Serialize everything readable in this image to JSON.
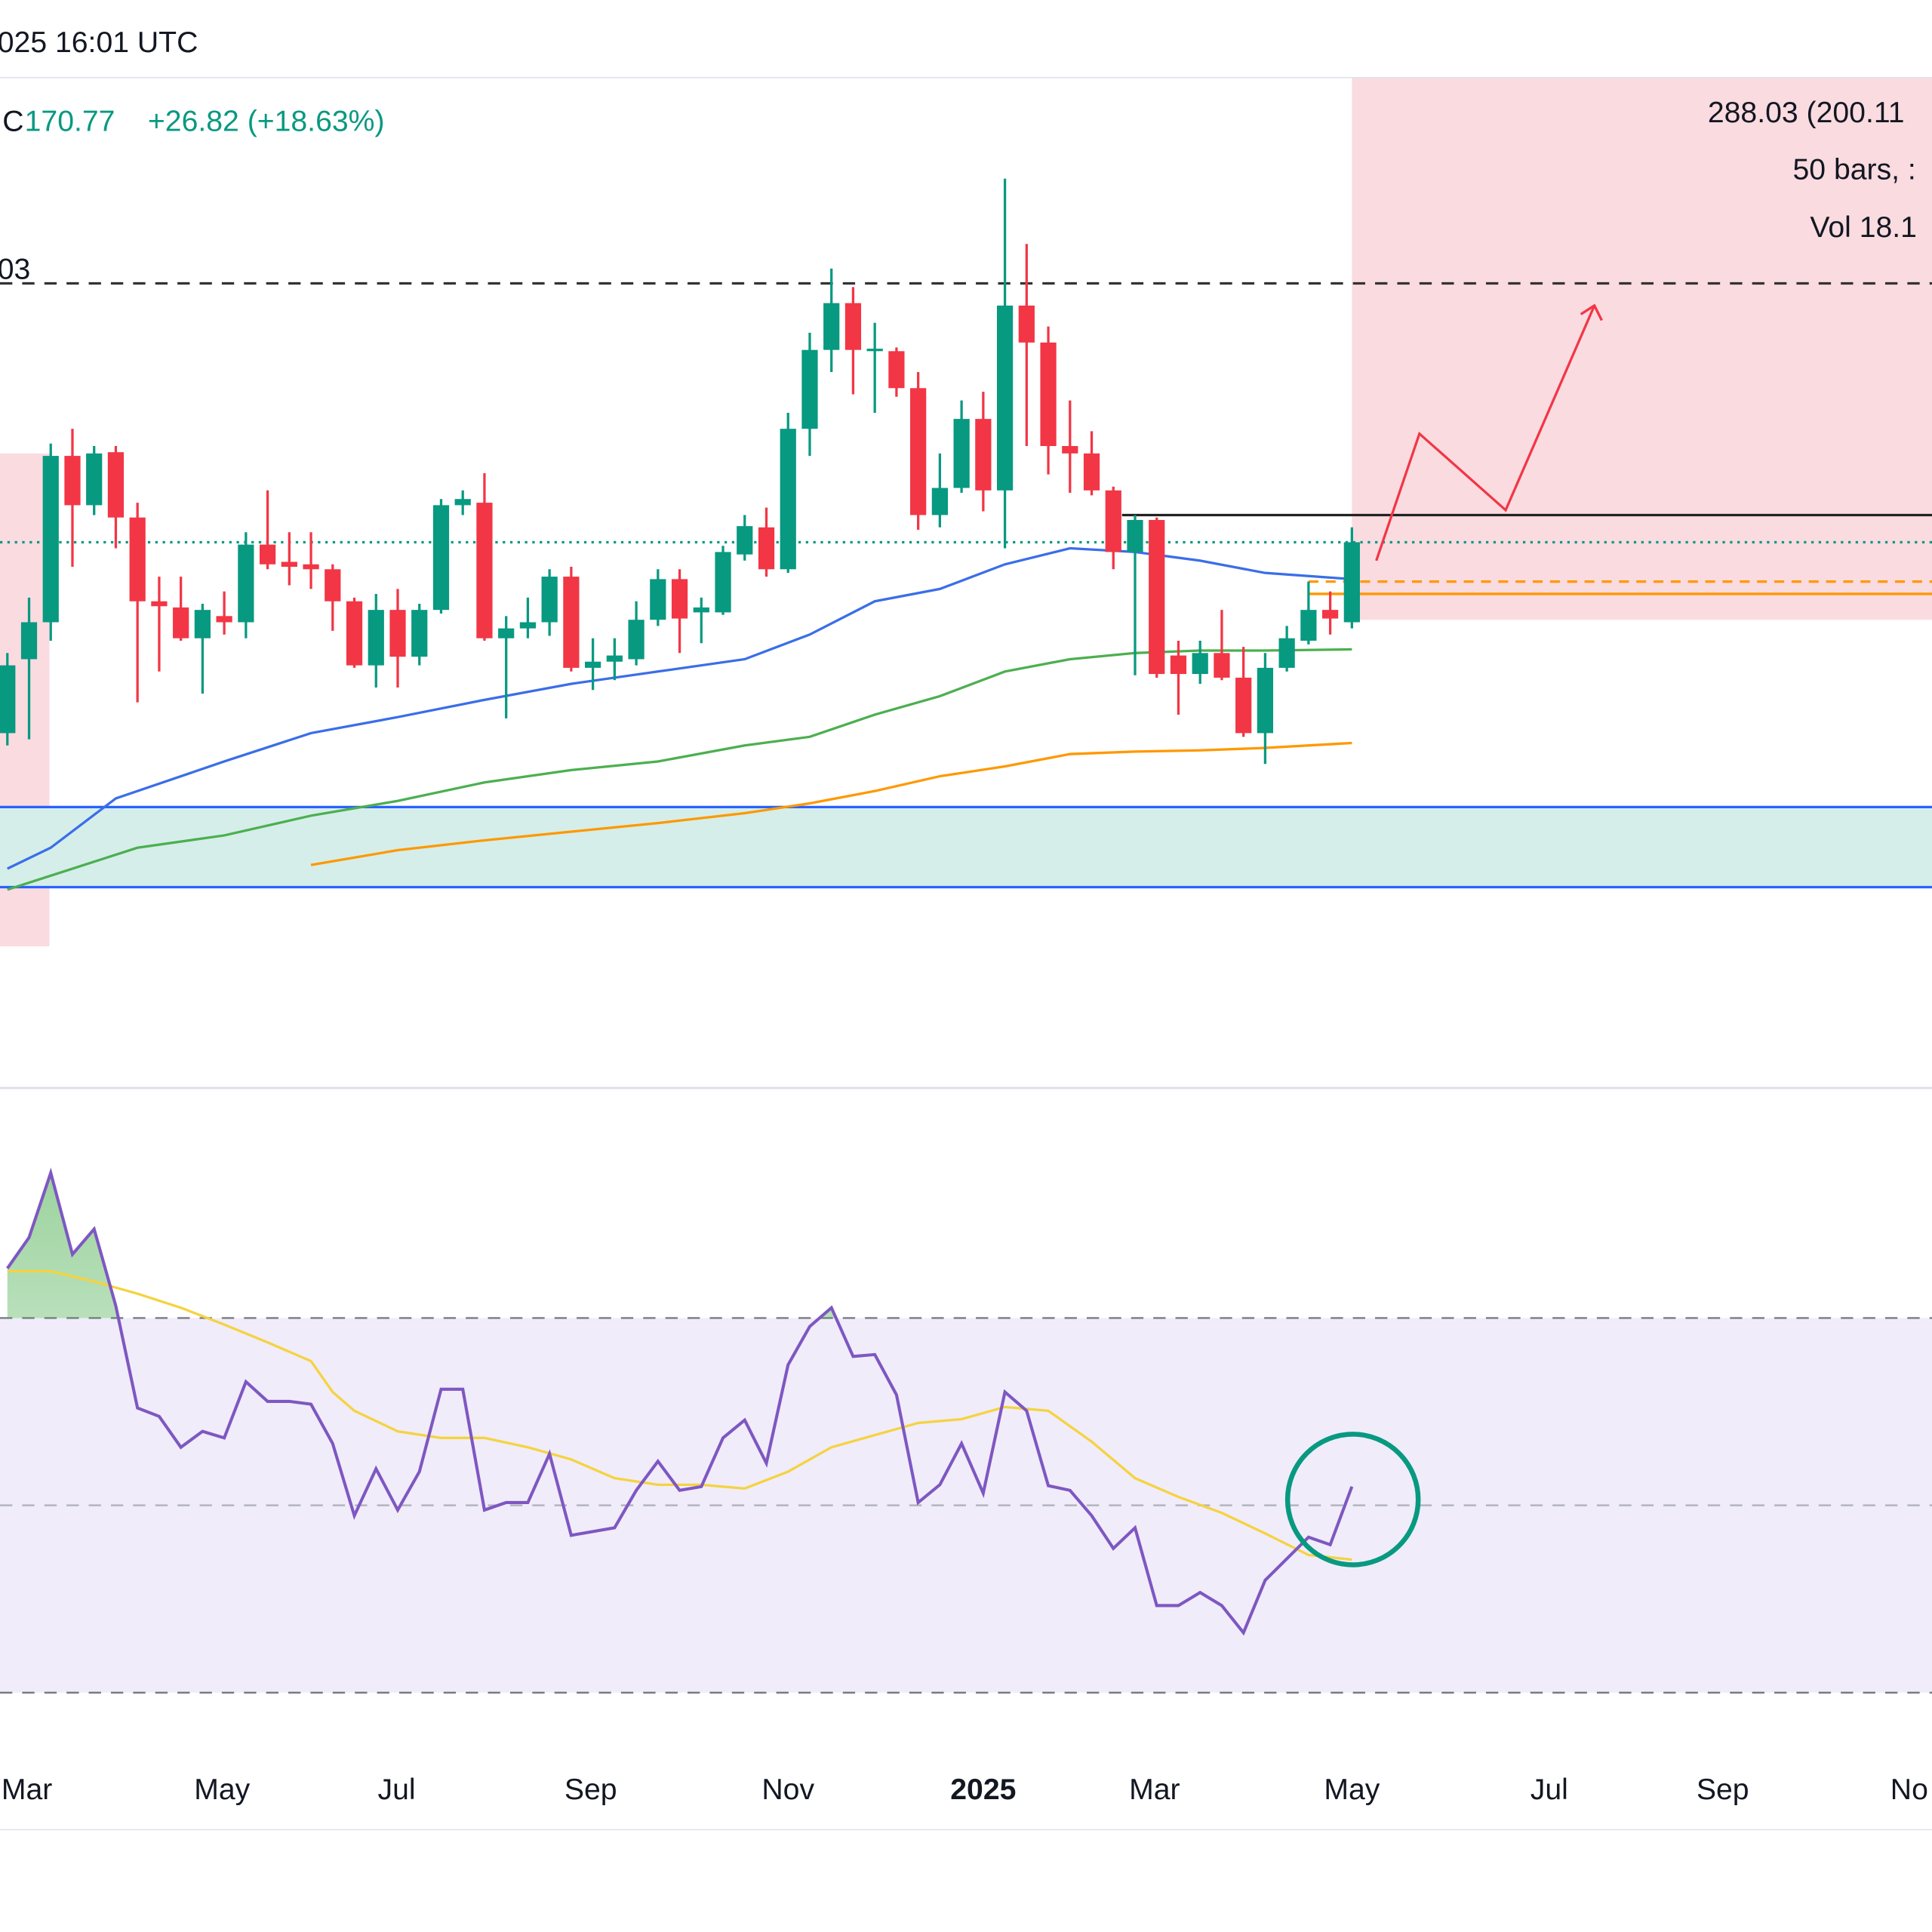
{
  "header": {
    "datetime": "025 16:01 UTC",
    "close_label": "C",
    "close": 170.77,
    "change": "+26.82 (+18.63%)"
  },
  "chart_data": [
    {
      "type": "candlestick",
      "panel": "price",
      "xlim": [
        -0.34,
        88.75
      ],
      "ylim": [
        -6,
        321.6
      ],
      "xticks": [
        {
          "value": 0.9,
          "label": "Mar"
        },
        {
          "value": 9.9,
          "label": "May"
        },
        {
          "value": 17.95,
          "label": "Jul"
        },
        {
          "value": 26.9,
          "label": "Sep"
        },
        {
          "value": 36,
          "label": "Nov"
        },
        {
          "value": 45,
          "label": "2025"
        },
        {
          "value": 52.9,
          "label": "Mar"
        },
        {
          "value": 62,
          "label": "May"
        },
        {
          "value": 71.1,
          "label": "Jul"
        },
        {
          "value": 79.1,
          "label": "Sep"
        },
        {
          "value": 87.7,
          "label": "No"
        }
      ],
      "up_color": "#089981",
      "down_color": "#f23645",
      "open": [
        108.8,
        132.8,
        144.8,
        198.8,
        182.8,
        200,
        178.8,
        151.6,
        149.6,
        139.6,
        146.8,
        144.8,
        170,
        164.4,
        163.6,
        162,
        151.6,
        130.8,
        148.8,
        133.6,
        148.8,
        182.8,
        183.6,
        139.6,
        142.8,
        144.8,
        159.6,
        130,
        132,
        132.8,
        145.6,
        158.8,
        148,
        148,
        166.8,
        175.6,
        162,
        207.6,
        233.2,
        248.4,
        233.2,
        232.8,
        220.8,
        179.6,
        188.4,
        210.8,
        187.6,
        247.6,
        235.6,
        202,
        199.6,
        187.6,
        167.6,
        178,
        134,
        128,
        134.8,
        126.8,
        108.8,
        130,
        138.8,
        148.8,
        144.8
      ],
      "high": [
        134.8,
        152.8,
        202.8,
        207.6,
        202,
        202,
        183.6,
        159.6,
        159.6,
        150.8,
        154.8,
        174,
        187.6,
        174,
        174,
        163.6,
        152.8,
        154,
        155.6,
        150.8,
        184.8,
        187.6,
        193.2,
        146.8,
        152.8,
        162,
        162.8,
        139.6,
        139.6,
        151.6,
        162,
        162,
        152.8,
        169.6,
        179.6,
        182,
        212.8,
        238.8,
        259.6,
        253.6,
        242,
        234,
        226,
        199.6,
        216.8,
        219.6,
        288.8,
        267.6,
        240.8,
        216.8,
        206.8,
        188.8,
        179.6,
        178.8,
        138.8,
        138.8,
        148.8,
        136.8,
        134.8,
        143.6,
        158,
        154.8,
        175.6
      ],
      "low": [
        104.8,
        106.8,
        138.8,
        162.8,
        179.6,
        168.8,
        118.8,
        128.8,
        138.8,
        121.6,
        140.8,
        139.6,
        162,
        156.8,
        155.6,
        142,
        130,
        123.6,
        123.6,
        130.8,
        147.6,
        179.6,
        138.8,
        113.6,
        139.6,
        140.4,
        128.8,
        122.8,
        126,
        130.8,
        143.6,
        134.8,
        138,
        147.2,
        164.8,
        159.6,
        160.8,
        198.8,
        226,
        218.8,
        212.8,
        218,
        174.8,
        175.6,
        186.8,
        180.8,
        168.8,
        202,
        192.8,
        186.8,
        186,
        162,
        127.6,
        126.8,
        114.8,
        124.8,
        126,
        107.6,
        98.8,
        128.8,
        137.6,
        140.8,
        142.8
      ],
      "close": [
        130.8,
        144.8,
        198.8,
        182.8,
        199.6,
        178.8,
        151.6,
        150,
        139.6,
        148.8,
        144.8,
        170,
        163.6,
        162.8,
        162,
        151.6,
        130.8,
        148.8,
        133.6,
        148.8,
        182.8,
        184.8,
        139.6,
        142.8,
        144.8,
        159.6,
        130,
        132,
        134,
        145.6,
        158.8,
        146,
        149.6,
        167.6,
        176,
        162,
        207.6,
        233.2,
        248.4,
        233.2,
        233.6,
        220.8,
        179.6,
        188.4,
        210.8,
        187.6,
        247.6,
        235.6,
        202,
        199.6,
        187.6,
        167.6,
        178,
        128,
        128,
        134.8,
        126.8,
        108.8,
        130,
        139.6,
        148.8,
        146,
        170.77
      ],
      "series": [
        {
          "color": "#3a6ee8",
          "x": [
            0,
            2,
            5,
            10,
            14,
            18,
            22,
            26,
            30,
            34,
            37,
            40,
            43,
            46,
            49,
            52,
            55,
            58,
            62
          ],
          "values": [
            64.8,
            71.6,
            87.6,
            99.6,
            108.8,
            114,
            119.6,
            124.8,
            128.8,
            132.8,
            140.8,
            151.6,
            155.6,
            163.6,
            168.8,
            167.6,
            164.8,
            160.8,
            158.8
          ]
        },
        {
          "color": "#4caf50",
          "x": [
            0,
            3,
            6,
            10,
            14,
            18,
            22,
            26,
            30,
            34,
            37,
            40,
            43,
            46,
            49,
            52,
            55,
            58,
            62
          ],
          "values": [
            58,
            64.8,
            71.6,
            75.6,
            82,
            86.8,
            92.8,
            96.8,
            99.6,
            104.8,
            107.6,
            114.8,
            120.8,
            128.8,
            132.8,
            134.8,
            135.6,
            135.6,
            136
          ]
        },
        {
          "color": "#ff9800",
          "x": [
            14,
            18,
            22,
            26,
            30,
            34,
            37,
            40,
            43,
            46,
            49,
            52,
            55,
            58,
            62
          ],
          "values": [
            66,
            70.8,
            74,
            76.8,
            79.6,
            82.8,
            86,
            90,
            94.8,
            98,
            102,
            102.8,
            103.2,
            104,
            105.6
          ]
        }
      ],
      "price_lines": [
        {
          "value": 254.8,
          "color": "#333333",
          "dash": "10 8"
        },
        {
          "value": 170.77,
          "color": "#089981",
          "dash": "2 4"
        },
        {
          "value": 179.6,
          "color": "#222222",
          "x_from": 51.4
        },
        {
          "value": 158,
          "color": "#ff9800",
          "dash": "8 6",
          "x_from": 60
        },
        {
          "value": 154,
          "color": "#ff9800",
          "x_from": 60
        }
      ],
      "zones": [
        {
          "from": 58.8,
          "to": 84.8,
          "fill": "#d5eee9",
          "edge": "#2962ff"
        }
      ],
      "boxes": [
        {
          "x": [
            62,
            88.75
          ],
          "y": [
            145.6,
            321.6
          ],
          "fill": "#fadbe0"
        },
        {
          "x": [
            -0.34,
            1.94
          ],
          "y": [
            39.6,
            199.6
          ],
          "fill": "#fadbe0"
        }
      ],
      "annotations": [
        "03",
        "288.03 (200.11",
        "50 bars, :",
        "Vol 18.1"
      ]
    },
    {
      "type": "line",
      "panel": "rsi",
      "xlim": [
        -0.34,
        88.75
      ],
      "ylim": [
        22.6,
        94.3
      ],
      "levels": [
        30,
        50,
        70
      ],
      "band": [
        30,
        70
      ],
      "band_color": "#f0ecf9",
      "series": [
        {
          "color": "#7e57c2",
          "x": [
            0,
            1,
            2,
            3,
            4,
            5,
            6,
            7,
            8,
            9,
            10,
            11,
            12,
            13,
            14,
            15,
            16,
            17,
            18,
            19,
            20,
            21,
            22,
            23,
            24,
            25,
            26,
            27,
            28,
            29,
            30,
            31,
            32,
            33,
            34,
            35,
            36,
            37,
            38,
            39,
            40,
            41,
            42,
            43,
            44,
            45,
            46,
            47,
            48,
            49,
            50,
            51,
            52,
            53,
            54,
            55,
            56,
            57,
            58,
            59,
            60,
            61,
            62
          ],
          "values": [
            75.3,
            78.6,
            85.5,
            76.8,
            79.5,
            71.3,
            60.4,
            59.5,
            56.2,
            57.9,
            57.2,
            63.2,
            61.1,
            61.1,
            60.8,
            56.6,
            48.9,
            53.9,
            49.5,
            53.6,
            62.4,
            62.4,
            49.5,
            50.3,
            50.3,
            55.5,
            46.8,
            47.2,
            47.6,
            51.6,
            54.7,
            51.6,
            52,
            57.2,
            59.1,
            54.5,
            65,
            69.1,
            71.1,
            65.9,
            66.1,
            61.8,
            50.3,
            52.2,
            56.6,
            51.3,
            62.1,
            60.1,
            52.1,
            51.6,
            48.9,
            45.4,
            47.6,
            39.3,
            39.3,
            40.7,
            39.3,
            36.4,
            42,
            44.3,
            46.6,
            45.8,
            52
          ]
        },
        {
          "color": "#f5d33f",
          "x": [
            0,
            2,
            4,
            6,
            8,
            10,
            12,
            14,
            15,
            16,
            18,
            20,
            22,
            24,
            26,
            28,
            30,
            32,
            34,
            36,
            38,
            40,
            42,
            44,
            46,
            48,
            50,
            52,
            54,
            56,
            58,
            60,
            62
          ],
          "values": [
            75,
            75,
            73.9,
            72.6,
            71.1,
            69.3,
            67.4,
            65.4,
            62.1,
            60.1,
            57.9,
            57.2,
            57.2,
            56.2,
            54.9,
            52.9,
            52.2,
            52.2,
            51.8,
            53.6,
            56.2,
            57.5,
            58.8,
            59.2,
            60.5,
            60.1,
            56.8,
            52.9,
            50.9,
            49.2,
            47,
            44.7,
            44.2
          ]
        }
      ]
    }
  ]
}
